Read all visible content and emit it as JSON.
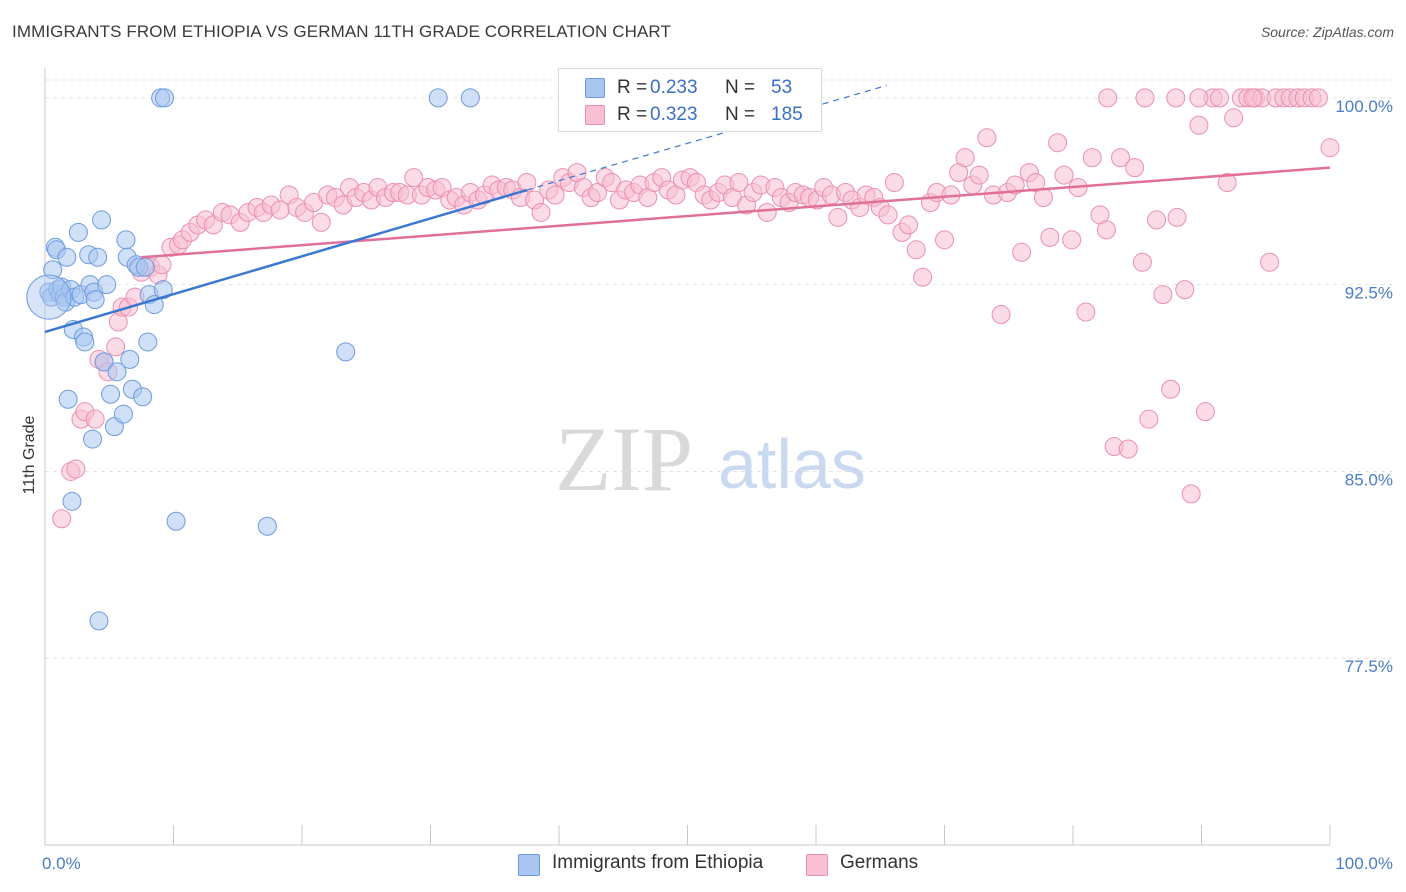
{
  "title": "IMMIGRANTS FROM ETHIOPIA VS GERMAN 11TH GRADE CORRELATION CHART",
  "source": "Source: ZipAtlas.com",
  "watermark": {
    "zip": "ZIP",
    "atlas": "atlas"
  },
  "legend": {
    "r_label": "R =",
    "n_label": "N =",
    "rows": [
      {
        "r": "0.233",
        "n": "53",
        "color": "#a9c6f0",
        "border": "#6d9be0"
      },
      {
        "r": "0.323",
        "n": "185",
        "color": "#f8c0d2",
        "border": "#eb8fae"
      }
    ]
  },
  "bottom_legend": [
    "Immigrants from Ethiopia",
    "Germans"
  ],
  "chart_data": {
    "type": "scatter",
    "xlabel": "",
    "ylabel": "11th Grade",
    "xlim": [
      0,
      100
    ],
    "ylim": [
      70.0,
      101.2
    ],
    "x_tick_labels": [
      "0.0%",
      "100.0%"
    ],
    "y_ticks": [
      77.5,
      85.0,
      92.5,
      100.0
    ],
    "y_tick_labels": [
      "77.5%",
      "85.0%",
      "92.5%",
      "100.0%"
    ],
    "grid": true,
    "legend_position": "top-center",
    "series": [
      {
        "name": "Immigrants from Ethiopia",
        "color": "#6d9be0",
        "fill": "#a9c6f0",
        "trend_color": "#3a78d0",
        "trend": {
          "x0": 0,
          "y0": 90.6,
          "x1": 37.5,
          "y1": 96.3,
          "dash_to_x": 65.5,
          "dash_to_y": 100.5
        },
        "points": [
          [
            0.3,
            92.2
          ],
          [
            0.5,
            92.0
          ],
          [
            0.6,
            93.1
          ],
          [
            0.8,
            94.0
          ],
          [
            0.9,
            93.9
          ],
          [
            1.0,
            92.3
          ],
          [
            1.2,
            92.1
          ],
          [
            1.3,
            92.4
          ],
          [
            1.5,
            92.0
          ],
          [
            1.6,
            91.8
          ],
          [
            1.7,
            93.6
          ],
          [
            1.8,
            87.9
          ],
          [
            2.0,
            92.3
          ],
          [
            2.1,
            83.8
          ],
          [
            2.2,
            90.7
          ],
          [
            2.3,
            92.0
          ],
          [
            2.6,
            94.6
          ],
          [
            2.8,
            92.1
          ],
          [
            3.0,
            90.4
          ],
          [
            3.1,
            90.2
          ],
          [
            3.4,
            93.7
          ],
          [
            3.5,
            92.5
          ],
          [
            3.7,
            86.3
          ],
          [
            3.8,
            92.2
          ],
          [
            3.9,
            91.9
          ],
          [
            4.1,
            93.6
          ],
          [
            4.2,
            79.0
          ],
          [
            4.4,
            95.1
          ],
          [
            4.6,
            89.4
          ],
          [
            4.8,
            92.5
          ],
          [
            5.1,
            88.1
          ],
          [
            5.4,
            86.8
          ],
          [
            5.6,
            89.0
          ],
          [
            6.1,
            87.3
          ],
          [
            6.3,
            94.3
          ],
          [
            6.4,
            93.6
          ],
          [
            6.6,
            89.5
          ],
          [
            6.8,
            88.3
          ],
          [
            7.1,
            93.3
          ],
          [
            7.3,
            93.2
          ],
          [
            7.6,
            88.0
          ],
          [
            7.8,
            93.2
          ],
          [
            8.0,
            90.2
          ],
          [
            8.1,
            92.1
          ],
          [
            8.5,
            91.7
          ],
          [
            9.0,
            100.0
          ],
          [
            9.2,
            92.3
          ],
          [
            9.3,
            100.0
          ],
          [
            10.2,
            83.0
          ],
          [
            17.3,
            82.8
          ],
          [
            23.4,
            89.8
          ],
          [
            30.6,
            100.0
          ],
          [
            33.1,
            100.0
          ]
        ]
      },
      {
        "name": "Germans",
        "color": "#eb8fae",
        "fill": "#f8c0d2",
        "trend_color": "#e0709a",
        "trend": {
          "x0": 7.5,
          "y0": 93.6,
          "x1": 100,
          "y1": 97.2
        },
        "points": [
          [
            1.3,
            83.1
          ],
          [
            2.0,
            85.0
          ],
          [
            2.4,
            85.1
          ],
          [
            2.8,
            87.1
          ],
          [
            3.1,
            87.4
          ],
          [
            3.9,
            87.1
          ],
          [
            4.2,
            89.5
          ],
          [
            4.6,
            89.4
          ],
          [
            4.9,
            89.0
          ],
          [
            5.5,
            90.0
          ],
          [
            5.7,
            91.0
          ],
          [
            6.0,
            91.6
          ],
          [
            6.5,
            91.6
          ],
          [
            7.0,
            92.0
          ],
          [
            7.5,
            93.0
          ],
          [
            8.2,
            93.2
          ],
          [
            8.8,
            92.9
          ],
          [
            9.1,
            93.3
          ],
          [
            9.8,
            94.0
          ],
          [
            10.4,
            94.1
          ],
          [
            10.7,
            94.3
          ],
          [
            11.3,
            94.6
          ],
          [
            11.9,
            94.9
          ],
          [
            12.5,
            95.1
          ],
          [
            13.1,
            94.9
          ],
          [
            13.8,
            95.4
          ],
          [
            14.4,
            95.3
          ],
          [
            15.2,
            95.0
          ],
          [
            15.8,
            95.4
          ],
          [
            16.5,
            95.6
          ],
          [
            17.0,
            95.4
          ],
          [
            17.6,
            95.7
          ],
          [
            18.3,
            95.5
          ],
          [
            19.0,
            96.1
          ],
          [
            19.6,
            95.6
          ],
          [
            20.2,
            95.4
          ],
          [
            20.9,
            95.8
          ],
          [
            21.5,
            95.0
          ],
          [
            22.0,
            96.1
          ],
          [
            22.6,
            96.0
          ],
          [
            23.2,
            95.7
          ],
          [
            23.7,
            96.4
          ],
          [
            24.2,
            96.0
          ],
          [
            24.8,
            96.2
          ],
          [
            25.4,
            95.9
          ],
          [
            25.9,
            96.4
          ],
          [
            26.5,
            96.0
          ],
          [
            27.1,
            96.2
          ],
          [
            27.6,
            96.2
          ],
          [
            28.2,
            96.1
          ],
          [
            28.7,
            96.8
          ],
          [
            29.3,
            96.1
          ],
          [
            29.8,
            96.4
          ],
          [
            30.4,
            96.3
          ],
          [
            30.9,
            96.4
          ],
          [
            31.5,
            95.9
          ],
          [
            32.0,
            96.0
          ],
          [
            32.6,
            95.7
          ],
          [
            33.1,
            96.2
          ],
          [
            33.7,
            95.9
          ],
          [
            34.2,
            96.1
          ],
          [
            34.8,
            96.5
          ],
          [
            35.3,
            96.3
          ],
          [
            35.9,
            96.4
          ],
          [
            36.4,
            96.3
          ],
          [
            37.0,
            96.0
          ],
          [
            37.5,
            96.6
          ],
          [
            38.1,
            95.9
          ],
          [
            38.6,
            95.4
          ],
          [
            39.2,
            96.3
          ],
          [
            39.7,
            96.1
          ],
          [
            40.3,
            96.8
          ],
          [
            40.8,
            96.6
          ],
          [
            41.4,
            97.0
          ],
          [
            41.9,
            96.4
          ],
          [
            42.5,
            96.0
          ],
          [
            43.0,
            96.2
          ],
          [
            43.6,
            96.8
          ],
          [
            44.1,
            96.6
          ],
          [
            44.7,
            95.9
          ],
          [
            45.2,
            96.3
          ],
          [
            45.8,
            96.2
          ],
          [
            46.3,
            96.5
          ],
          [
            46.9,
            96.0
          ],
          [
            47.4,
            96.6
          ],
          [
            48.0,
            96.8
          ],
          [
            48.5,
            96.3
          ],
          [
            49.1,
            96.1
          ],
          [
            49.6,
            96.7
          ],
          [
            50.2,
            96.8
          ],
          [
            50.7,
            96.6
          ],
          [
            51.3,
            96.1
          ],
          [
            51.8,
            95.9
          ],
          [
            52.4,
            96.2
          ],
          [
            52.9,
            96.5
          ],
          [
            53.5,
            96.0
          ],
          [
            54.0,
            96.6
          ],
          [
            54.6,
            95.7
          ],
          [
            55.1,
            96.2
          ],
          [
            55.7,
            96.5
          ],
          [
            56.2,
            95.4
          ],
          [
            56.8,
            96.4
          ],
          [
            57.3,
            96.0
          ],
          [
            57.9,
            95.8
          ],
          [
            58.4,
            96.2
          ],
          [
            59.0,
            96.1
          ],
          [
            59.5,
            96.0
          ],
          [
            60.1,
            95.9
          ],
          [
            60.6,
            96.4
          ],
          [
            61.2,
            96.1
          ],
          [
            61.7,
            95.2
          ],
          [
            62.3,
            96.2
          ],
          [
            62.8,
            95.9
          ],
          [
            63.4,
            95.6
          ],
          [
            63.9,
            96.1
          ],
          [
            64.5,
            96.0
          ],
          [
            65.0,
            95.6
          ],
          [
            65.6,
            95.3
          ],
          [
            66.1,
            96.6
          ],
          [
            66.7,
            94.6
          ],
          [
            67.2,
            94.9
          ],
          [
            67.8,
            93.9
          ],
          [
            68.3,
            92.8
          ],
          [
            68.9,
            95.8
          ],
          [
            69.4,
            96.2
          ],
          [
            70.0,
            94.3
          ],
          [
            70.5,
            96.1
          ],
          [
            71.1,
            97.0
          ],
          [
            71.6,
            97.6
          ],
          [
            72.2,
            96.5
          ],
          [
            72.7,
            96.9
          ],
          [
            73.3,
            98.4
          ],
          [
            73.8,
            96.1
          ],
          [
            74.4,
            91.3
          ],
          [
            74.9,
            96.2
          ],
          [
            75.5,
            96.5
          ],
          [
            76.0,
            93.8
          ],
          [
            76.6,
            97.0
          ],
          [
            77.1,
            96.6
          ],
          [
            77.7,
            96.0
          ],
          [
            78.2,
            94.4
          ],
          [
            78.8,
            98.2
          ],
          [
            79.3,
            96.9
          ],
          [
            79.9,
            94.3
          ],
          [
            80.4,
            96.4
          ],
          [
            81.0,
            91.4
          ],
          [
            81.5,
            97.6
          ],
          [
            82.1,
            95.3
          ],
          [
            82.6,
            94.7
          ],
          [
            83.2,
            86.0
          ],
          [
            83.7,
            97.6
          ],
          [
            84.3,
            85.9
          ],
          [
            84.8,
            97.2
          ],
          [
            85.4,
            93.4
          ],
          [
            85.9,
            87.1
          ],
          [
            86.5,
            95.1
          ],
          [
            87.0,
            92.1
          ],
          [
            87.6,
            88.3
          ],
          [
            88.1,
            95.2
          ],
          [
            88.7,
            92.3
          ],
          [
            89.2,
            84.1
          ],
          [
            89.8,
            98.9
          ],
          [
            90.3,
            87.4
          ],
          [
            90.9,
            100.0
          ],
          [
            91.4,
            100.0
          ],
          [
            92.0,
            96.6
          ],
          [
            92.5,
            99.2
          ],
          [
            93.1,
            100.0
          ],
          [
            93.6,
            100.0
          ],
          [
            94.2,
            100.0
          ],
          [
            94.7,
            100.0
          ],
          [
            95.3,
            93.4
          ],
          [
            95.8,
            100.0
          ],
          [
            96.4,
            100.0
          ],
          [
            96.9,
            100.0
          ],
          [
            97.5,
            100.0
          ],
          [
            98.0,
            100.0
          ],
          [
            98.6,
            100.0
          ],
          [
            99.1,
            100.0
          ],
          [
            100.0,
            98.0
          ],
          [
            82.7,
            100.0
          ],
          [
            85.6,
            100.0
          ],
          [
            88.0,
            100.0
          ],
          [
            89.8,
            100.0
          ],
          [
            94.0,
            100.0
          ]
        ]
      }
    ]
  }
}
